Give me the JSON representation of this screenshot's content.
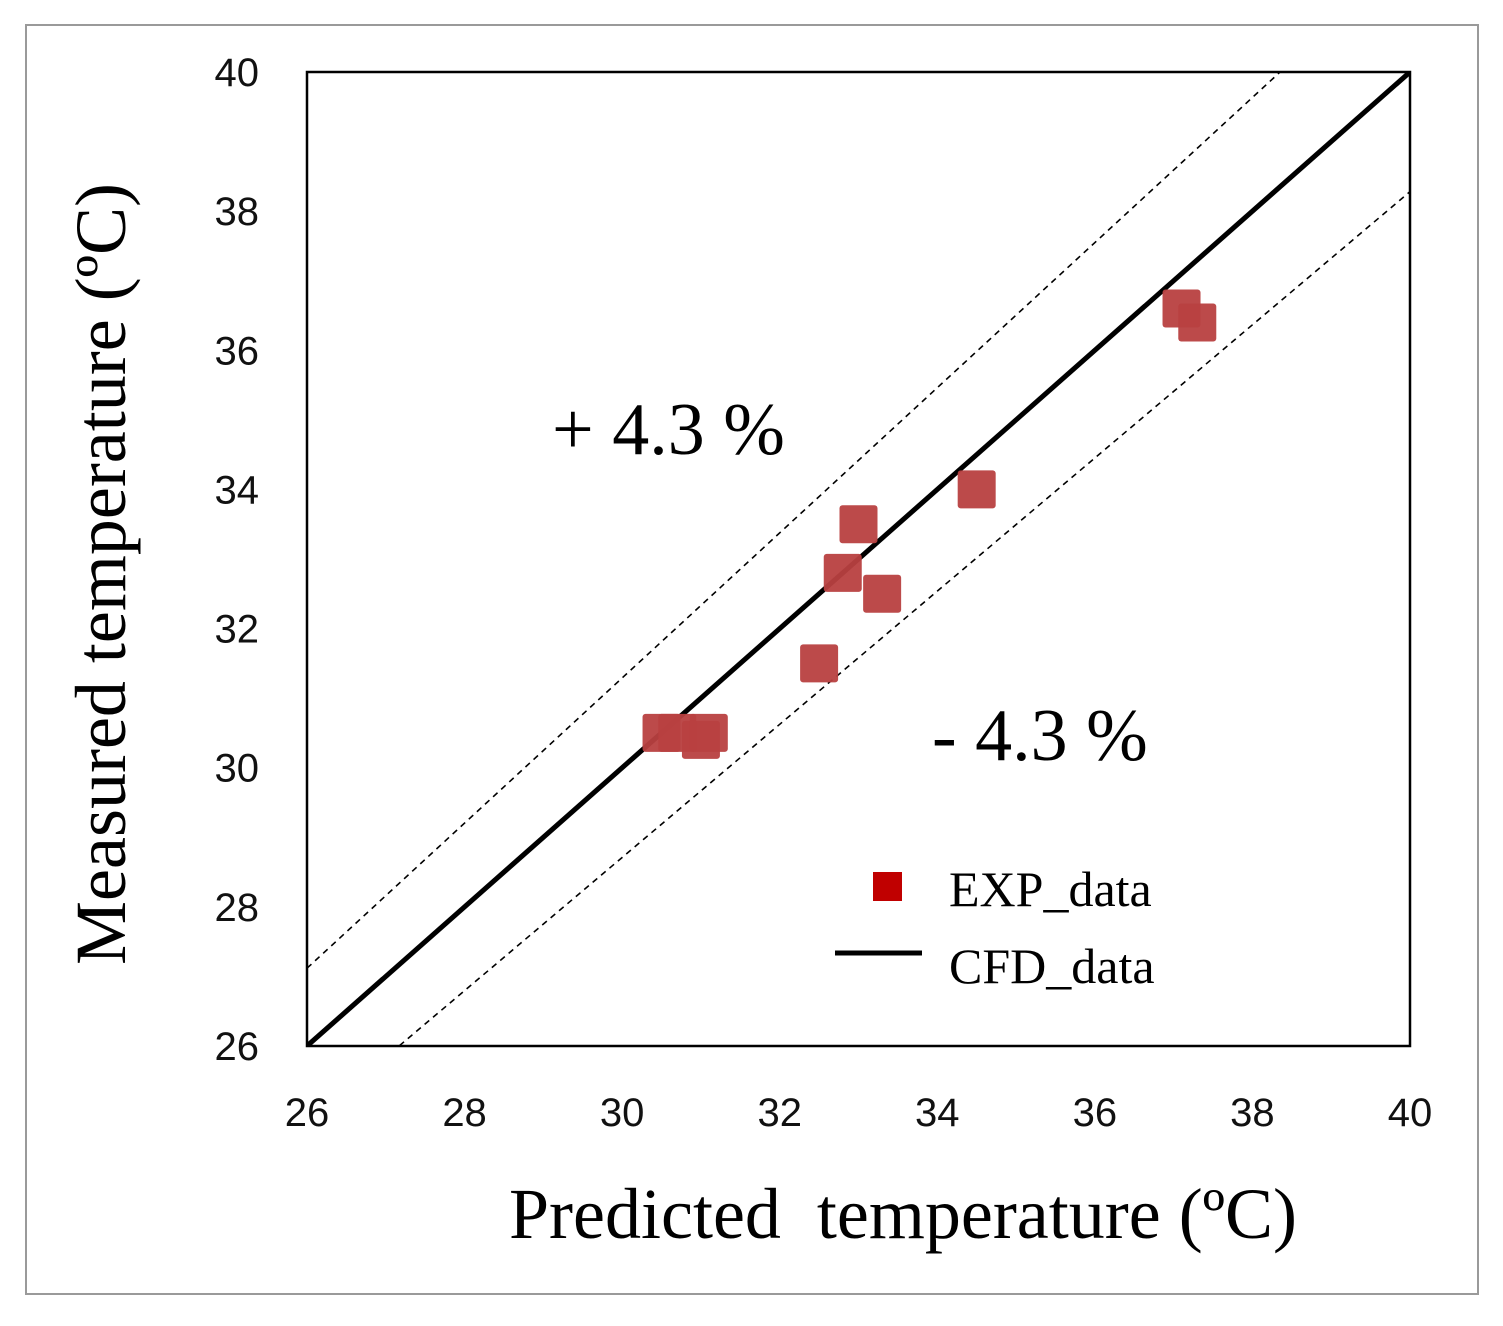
{
  "chart_data": {
    "type": "scatter",
    "xlabel": "Predicted  temperature (ºC)",
    "ylabel": "Measured temperature (ºC)",
    "xlim": [
      26,
      40
    ],
    "ylim": [
      26,
      40
    ],
    "xticks": [
      26,
      28,
      30,
      32,
      34,
      36,
      38,
      40
    ],
    "yticks": [
      26,
      28,
      30,
      32,
      34,
      36,
      38,
      40
    ],
    "grid": false,
    "legend_position": "lower-right",
    "series": [
      {
        "name": "EXP_data",
        "kind": "scatter",
        "marker": "square",
        "color": "#b84040",
        "points": [
          {
            "x": 30.5,
            "y": 30.5
          },
          {
            "x": 30.7,
            "y": 30.5
          },
          {
            "x": 31.0,
            "y": 30.4
          },
          {
            "x": 31.1,
            "y": 30.5
          },
          {
            "x": 32.5,
            "y": 31.5
          },
          {
            "x": 32.8,
            "y": 32.8
          },
          {
            "x": 33.0,
            "y": 33.5
          },
          {
            "x": 33.3,
            "y": 32.5
          },
          {
            "x": 34.5,
            "y": 34.0
          },
          {
            "x": 37.1,
            "y": 36.6
          },
          {
            "x": 37.3,
            "y": 36.4
          }
        ]
      },
      {
        "name": "CFD_data",
        "kind": "line",
        "color": "#000000",
        "points": [
          {
            "x": 26,
            "y": 26
          },
          {
            "x": 40,
            "y": 40
          }
        ]
      }
    ],
    "bounds": [
      {
        "label": "+ 4.3 %",
        "factor": 1.043
      },
      {
        "label": "- 4.3 %",
        "factor": 0.957
      }
    ],
    "legend_swatch_color": "#c00000"
  }
}
